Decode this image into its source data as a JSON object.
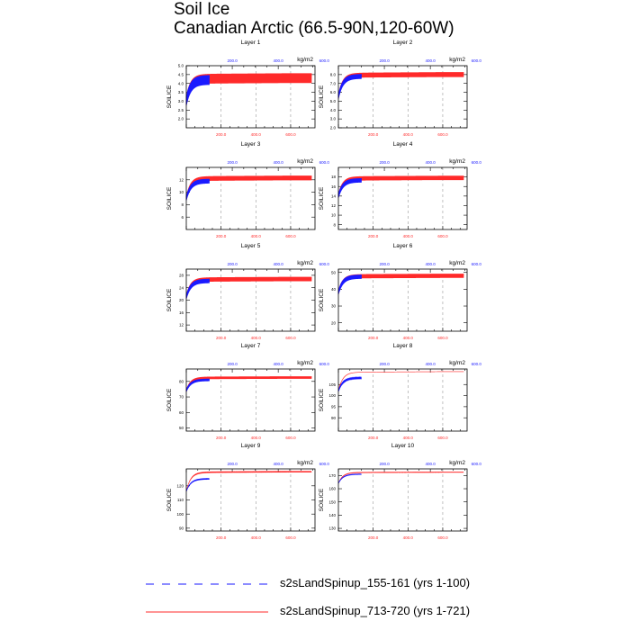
{
  "title": {
    "line1": "Soil Ice",
    "line2": "Canadian Arctic (66.5-90N,120-60W)"
  },
  "chart_data": {
    "type": "line",
    "ylabel": "SOILICE",
    "units": "kg/m2",
    "top_axis_labels": [
      "200.0",
      "400.0",
      "600.0"
    ],
    "bottom_axis_labels": [
      "200.0",
      "400.0",
      "600.0"
    ],
    "x_range_top": [
      0,
      560
    ],
    "x_range_bottom": [
      0,
      740
    ],
    "colors": {
      "series1": "#1a1aff",
      "series2": "#ff2a2a"
    },
    "series": [
      {
        "name": "s2sLandSpinup_155-161 (yrs 1-100)",
        "axis": "top",
        "style": "dashed"
      },
      {
        "name": "s2sLandSpinup_713-720 (yrs 1-721)",
        "axis": "bottom",
        "style": "solid"
      }
    ],
    "panels": [
      {
        "title": "Layer 1",
        "ylim": [
          1.5,
          5.0
        ],
        "yticks": [
          "2.0",
          "2.5",
          "3.0",
          "3.5",
          "4.0",
          "4.5",
          "5.0"
        ],
        "start": 3.0,
        "s1_end": 4.2,
        "s2_end": 4.3,
        "amp": 0.55
      },
      {
        "title": "Layer 2",
        "ylim": [
          2.0,
          9.0
        ],
        "yticks": [
          "2.0",
          "3.0",
          "4.0",
          "5.0",
          "6.0",
          "7.0",
          "8.0"
        ],
        "start": 5.5,
        "s1_end": 7.8,
        "s2_end": 8.0,
        "amp": 0.55
      },
      {
        "title": "Layer 3",
        "ylim": [
          4.0,
          14.0
        ],
        "yticks": [
          "6",
          "8",
          "10",
          "12"
        ],
        "start": 9.0,
        "s1_end": 11.8,
        "s2_end": 12.3,
        "amp": 0.75
      },
      {
        "title": "Layer 4",
        "ylim": [
          7.0,
          20.0
        ],
        "yticks": [
          "8",
          "10",
          "12",
          "14",
          "16",
          "18"
        ],
        "start": 14.0,
        "s1_end": 17.3,
        "s2_end": 17.8,
        "amp": 0.9
      },
      {
        "title": "Layer 5",
        "ylim": [
          10.0,
          30.0
        ],
        "yticks": [
          "12",
          "16",
          "20",
          "24",
          "28"
        ],
        "start": 21.0,
        "s1_end": 26.2,
        "s2_end": 26.8,
        "amp": 1.4
      },
      {
        "title": "Layer 6",
        "ylim": [
          15.0,
          52.0
        ],
        "yticks": [
          "20",
          "30",
          "40",
          "50"
        ],
        "start": 38.0,
        "s1_end": 47.5,
        "s2_end": 48.0,
        "amp": 2.5
      },
      {
        "title": "Layer 7",
        "ylim": [
          48.0,
          88.0
        ],
        "yticks": [
          "50",
          "60",
          "70",
          "80"
        ],
        "start": 74.0,
        "s1_end": 81.0,
        "s2_end": 82.5,
        "amp": 1.6
      },
      {
        "title": "Layer 8",
        "ylim": [
          84.0,
          112.0
        ],
        "yticks": [
          "90",
          "95",
          "100",
          "105"
        ],
        "start": 102.0,
        "s1_end": 108.0,
        "s2_end": 110.8,
        "amp": 0.2
      },
      {
        "title": "Layer 9",
        "ylim": [
          88.0,
          132.0
        ],
        "yticks": [
          "90",
          "100",
          "110",
          "120"
        ],
        "start": 116.0,
        "s1_end": 125.0,
        "s2_end": 130.0,
        "amp": 0.15
      },
      {
        "title": "Layer 10",
        "ylim": [
          128.0,
          175.0
        ],
        "yticks": [
          "130",
          "140",
          "150",
          "160",
          "170"
        ],
        "start": 164.0,
        "s1_end": 171.0,
        "s2_end": 172.5,
        "amp": 0.1
      }
    ]
  }
}
